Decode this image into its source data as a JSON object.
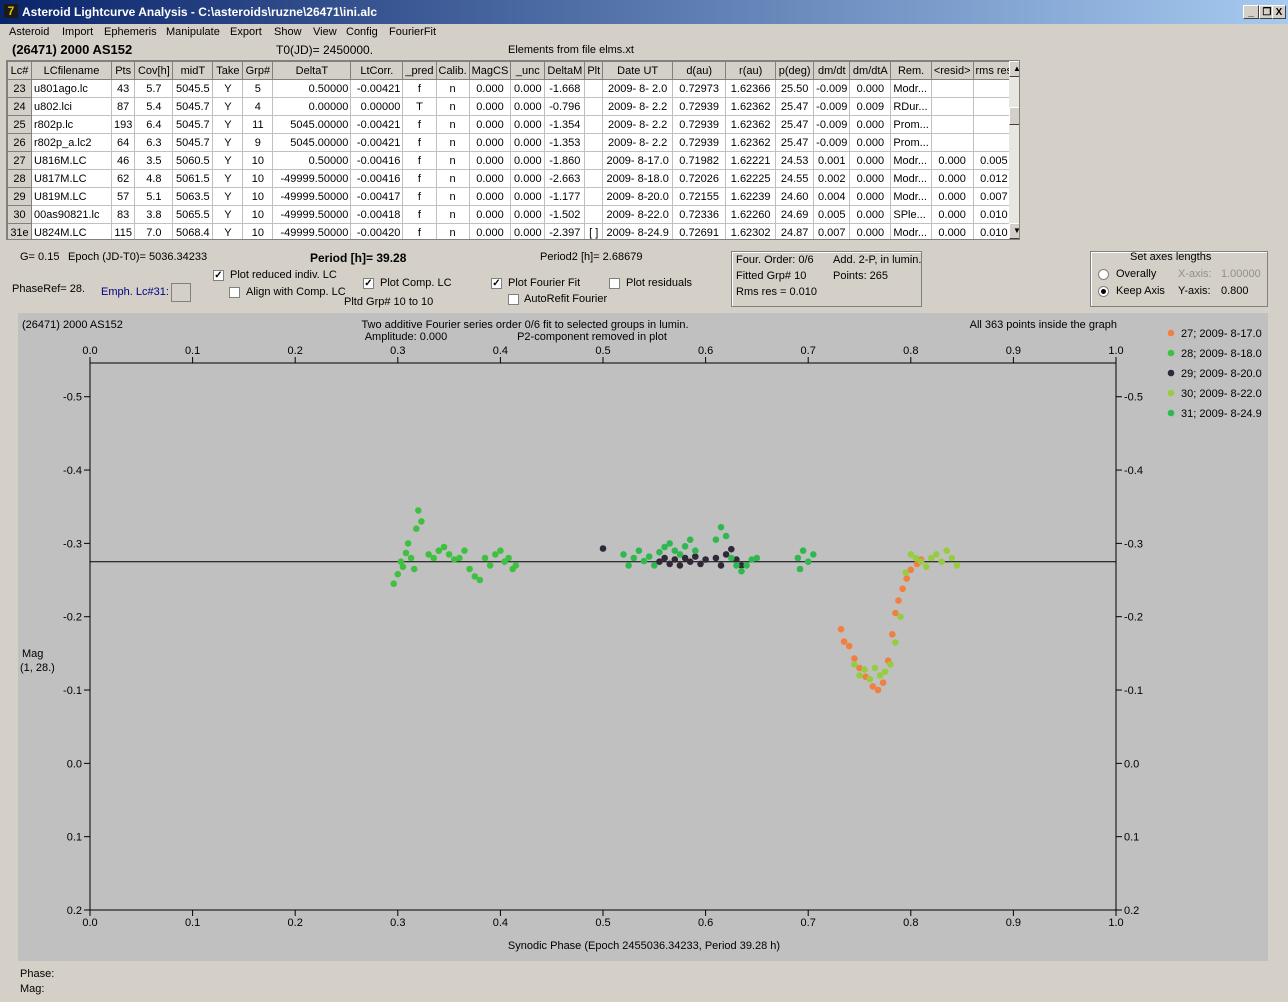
{
  "window": {
    "title": "Asteroid Lightcurve Analysis - C:\\asteroids\\ruzne\\26471\\ini.alc",
    "min_glyph": "_",
    "restore_glyph": "❐",
    "close_glyph": "X"
  },
  "menu": [
    "Asteroid",
    "Import",
    "Ephemeris",
    "Manipulate",
    "Export",
    "Show",
    "View",
    "Config",
    "FourierFit"
  ],
  "header": {
    "object": "(26471) 2000 AS152",
    "t0": "T0(JD)= 2450000.",
    "elements": "Elements from file elms.xt"
  },
  "table": {
    "columns": [
      "Lc#",
      "LCfilename",
      "Pts",
      "Cov[h]",
      "midT",
      "Take",
      "Grp#",
      "DeltaT",
      "LtCorr.",
      "_pred",
      "Calib.",
      "MagCS",
      "_unc",
      "DeltaM",
      "Plt",
      "Date UT",
      "d(au)",
      "r(au)",
      "p(deg)",
      "dm/dt",
      "dm/dtA",
      "Rem.",
      "<resid>",
      "rms res"
    ],
    "rows": [
      [
        "23",
        "u801ago.lc",
        "43",
        "5.7",
        "5045.5",
        "Y",
        "5",
        "0.50000",
        "-0.00421",
        "f",
        "n",
        "0.000",
        "0.000",
        "-1.668",
        "",
        "2009- 8- 2.0",
        "0.72973",
        "1.62366",
        "25.50",
        "-0.009",
        "0.000",
        "Modr...",
        "",
        ""
      ],
      [
        "24",
        "u802.lci",
        "87",
        "5.4",
        "5045.7",
        "Y",
        "4",
        "0.00000",
        "0.00000",
        "T",
        "n",
        "0.000",
        "0.000",
        "-0.796",
        "",
        "2009- 8- 2.2",
        "0.72939",
        "1.62362",
        "25.47",
        "-0.009",
        "0.009",
        "RDur...",
        "",
        ""
      ],
      [
        "25",
        "r802p.lc",
        "193",
        "6.4",
        "5045.7",
        "Y",
        "11",
        "5045.00000",
        "-0.00421",
        "f",
        "n",
        "0.000",
        "0.000",
        "-1.354",
        "",
        "2009- 8- 2.2",
        "0.72939",
        "1.62362",
        "25.47",
        "-0.009",
        "0.000",
        "Prom...",
        "",
        ""
      ],
      [
        "26",
        "r802p_a.lc2",
        "64",
        "6.3",
        "5045.7",
        "Y",
        "9",
        "5045.00000",
        "-0.00421",
        "f",
        "n",
        "0.000",
        "0.000",
        "-1.353",
        "",
        "2009- 8- 2.2",
        "0.72939",
        "1.62362",
        "25.47",
        "-0.009",
        "0.000",
        "Prom...",
        "",
        ""
      ],
      [
        "27",
        "U816M.LC",
        "46",
        "3.5",
        "5060.5",
        "Y",
        "10",
        "0.50000",
        "-0.00416",
        "f",
        "n",
        "0.000",
        "0.000",
        "-1.860",
        "",
        "2009- 8-17.0",
        "0.71982",
        "1.62221",
        "24.53",
        "0.001",
        "0.000",
        "Modr...",
        "0.000",
        "0.005"
      ],
      [
        "28",
        "U817M.LC",
        "62",
        "4.8",
        "5061.5",
        "Y",
        "10",
        "-49999.50000",
        "-0.00416",
        "f",
        "n",
        "0.000",
        "0.000",
        "-2.663",
        "",
        "2009- 8-18.0",
        "0.72026",
        "1.62225",
        "24.55",
        "0.002",
        "0.000",
        "Modr...",
        "0.000",
        "0.012"
      ],
      [
        "29",
        "U819M.LC",
        "57",
        "5.1",
        "5063.5",
        "Y",
        "10",
        "-49999.50000",
        "-0.00417",
        "f",
        "n",
        "0.000",
        "0.000",
        "-1.177",
        "",
        "2009- 8-20.0",
        "0.72155",
        "1.62239",
        "24.60",
        "0.004",
        "0.000",
        "Modr...",
        "0.000",
        "0.007"
      ],
      [
        "30",
        "00as90821.lc",
        "83",
        "3.8",
        "5065.5",
        "Y",
        "10",
        "-49999.50000",
        "-0.00418",
        "f",
        "n",
        "0.000",
        "0.000",
        "-1.502",
        "",
        "2009- 8-22.0",
        "0.72336",
        "1.62260",
        "24.69",
        "0.005",
        "0.000",
        "SPle...",
        "0.000",
        "0.010"
      ],
      [
        "31e",
        "U824M.LC",
        "115",
        "7.0",
        "5068.4",
        "Y",
        "10",
        "-49999.50000",
        "-0.00420",
        "f",
        "n",
        "0.000",
        "0.000",
        "-2.397",
        "[ ]",
        "2009- 8-24.9",
        "0.72691",
        "1.62302",
        "24.87",
        "0.007",
        "0.000",
        "Modr...",
        "0.000",
        "0.010"
      ]
    ],
    "scroll_up": "▲",
    "scroll_down": "▼"
  },
  "controls": {
    "g": "G= 0.15",
    "epoch": "Epoch (JD-T0)= 5036.34233",
    "period": "Period [h]= 39.28",
    "period2": "Period2 [h]= 2.68679",
    "phaseref": "PhaseRef= 28.",
    "emph": "Emph. Lc#31:",
    "plot_reduced": "Plot reduced indiv. LC",
    "align_comp": "Align with Comp. LC",
    "plot_comp": "Plot Comp. LC",
    "pltd_grp": "Pltd Grp#  10 to   10",
    "plot_fourier": "Plot Fourier Fit",
    "autorefit": "AutoRefit Fourier",
    "plot_residuals": "Plot residuals",
    "checked_glyph": "✓"
  },
  "fourier": {
    "order": "Four. Order:  0/6",
    "add": "Add. 2-P, in lumin.",
    "fitted": "Fitted Grp# 10",
    "points": "Points: 265",
    "rms": "Rms res     = 0.010"
  },
  "axes_box": {
    "title": "Set axes lengths",
    "overall": "Overally",
    "keep": "Keep Axis",
    "xaxis_label": "X-axis:",
    "xaxis_value": "1.00000",
    "yaxis_label": "Y-axis:",
    "yaxis_value": "0.800"
  },
  "chart_data": {
    "type": "scatter",
    "object_label": "(26471) 2000 AS152",
    "title": "Two additive Fourier series order 0/6 fit to selected groups in lumin.",
    "amplitude": "Amplitude: 0.000",
    "p2note": "P2-component removed in plot",
    "points_note": "All 363 points inside the graph",
    "xlabel": "Synodic Phase (Epoch 2455036.34233, Period 39.28 h)",
    "ylabel": "Mag",
    "ylabel2": "(1, 28.)",
    "xlim": [
      0.0,
      1.0
    ],
    "ylim": [
      -0.4,
      0.4
    ],
    "y_reversed": true,
    "xticks": [
      "0.0",
      "0.1",
      "0.2",
      "0.3",
      "0.4",
      "0.5",
      "0.6",
      "0.7",
      "0.8",
      "0.9",
      "1.0"
    ],
    "yticks": [
      "-0.5",
      "-0.4",
      "-0.3",
      "-0.2",
      "-0.1",
      "0.0",
      "0.1",
      "0.2"
    ],
    "ytick_values": [
      -0.5,
      -0.4,
      -0.3,
      -0.2,
      -0.1,
      0.0,
      0.1,
      0.2
    ],
    "fit_line_y": -0.275,
    "series": [
      {
        "name": "27; 2009- 8-17.0",
        "color": "#f08040",
        "points": [
          [
            0.732,
            -0.183
          ],
          [
            0.735,
            -0.166
          ],
          [
            0.74,
            -0.16
          ],
          [
            0.745,
            -0.143
          ],
          [
            0.75,
            -0.13
          ],
          [
            0.756,
            -0.118
          ],
          [
            0.763,
            -0.105
          ],
          [
            0.768,
            -0.1
          ],
          [
            0.773,
            -0.11
          ],
          [
            0.778,
            -0.14
          ],
          [
            0.782,
            -0.176
          ],
          [
            0.785,
            -0.205
          ],
          [
            0.788,
            -0.222
          ],
          [
            0.792,
            -0.238
          ],
          [
            0.796,
            -0.252
          ],
          [
            0.8,
            -0.264
          ],
          [
            0.806,
            -0.272
          ],
          [
            0.81,
            -0.278
          ]
        ]
      },
      {
        "name": "28; 2009- 8-18.0",
        "color": "#40c040",
        "points": [
          [
            0.3,
            -0.258
          ],
          [
            0.303,
            -0.275
          ],
          [
            0.305,
            -0.268
          ],
          [
            0.308,
            -0.287
          ],
          [
            0.31,
            -0.3
          ],
          [
            0.313,
            -0.28
          ],
          [
            0.316,
            -0.265
          ],
          [
            0.318,
            -0.32
          ],
          [
            0.32,
            -0.345
          ],
          [
            0.323,
            -0.33
          ],
          [
            0.33,
            -0.285
          ],
          [
            0.335,
            -0.28
          ],
          [
            0.34,
            -0.29
          ],
          [
            0.345,
            -0.295
          ],
          [
            0.35,
            -0.285
          ],
          [
            0.355,
            -0.278
          ],
          [
            0.36,
            -0.28
          ],
          [
            0.365,
            -0.29
          ],
          [
            0.37,
            -0.265
          ],
          [
            0.375,
            -0.255
          ],
          [
            0.38,
            -0.25
          ],
          [
            0.385,
            -0.28
          ],
          [
            0.39,
            -0.27
          ],
          [
            0.395,
            -0.285
          ],
          [
            0.4,
            -0.29
          ],
          [
            0.404,
            -0.275
          ],
          [
            0.408,
            -0.28
          ],
          [
            0.412,
            -0.265
          ],
          [
            0.415,
            -0.27
          ],
          [
            0.296,
            -0.245
          ]
        ]
      },
      {
        "name": "29; 2009- 8-20.0",
        "color": "#302838",
        "points": [
          [
            0.5,
            -0.293
          ],
          [
            0.555,
            -0.275
          ],
          [
            0.56,
            -0.28
          ],
          [
            0.565,
            -0.272
          ],
          [
            0.57,
            -0.278
          ],
          [
            0.575,
            -0.27
          ],
          [
            0.58,
            -0.28
          ],
          [
            0.585,
            -0.275
          ],
          [
            0.59,
            -0.282
          ],
          [
            0.595,
            -0.272
          ],
          [
            0.6,
            -0.278
          ],
          [
            0.61,
            -0.28
          ],
          [
            0.615,
            -0.27
          ],
          [
            0.62,
            -0.285
          ],
          [
            0.625,
            -0.292
          ],
          [
            0.63,
            -0.278
          ],
          [
            0.635,
            -0.27
          ]
        ]
      },
      {
        "name": "30; 2009- 8-22.0",
        "color": "#98cc40",
        "points": [
          [
            0.745,
            -0.135
          ],
          [
            0.75,
            -0.12
          ],
          [
            0.755,
            -0.128
          ],
          [
            0.76,
            -0.115
          ],
          [
            0.765,
            -0.13
          ],
          [
            0.77,
            -0.12
          ],
          [
            0.775,
            -0.125
          ],
          [
            0.78,
            -0.135
          ],
          [
            0.785,
            -0.165
          ],
          [
            0.79,
            -0.2
          ],
          [
            0.795,
            -0.26
          ],
          [
            0.8,
            -0.285
          ],
          [
            0.805,
            -0.28
          ],
          [
            0.81,
            -0.275
          ],
          [
            0.815,
            -0.268
          ],
          [
            0.82,
            -0.28
          ],
          [
            0.825,
            -0.285
          ],
          [
            0.83,
            -0.275
          ],
          [
            0.835,
            -0.29
          ],
          [
            0.84,
            -0.28
          ],
          [
            0.845,
            -0.27
          ]
        ]
      },
      {
        "name": "31; 2009- 8-24.9",
        "color": "#30b850",
        "points": [
          [
            0.52,
            -0.285
          ],
          [
            0.525,
            -0.27
          ],
          [
            0.53,
            -0.28
          ],
          [
            0.535,
            -0.29
          ],
          [
            0.54,
            -0.276
          ],
          [
            0.545,
            -0.282
          ],
          [
            0.55,
            -0.27
          ],
          [
            0.555,
            -0.288
          ],
          [
            0.56,
            -0.295
          ],
          [
            0.565,
            -0.3
          ],
          [
            0.57,
            -0.29
          ],
          [
            0.575,
            -0.285
          ],
          [
            0.58,
            -0.296
          ],
          [
            0.585,
            -0.305
          ],
          [
            0.59,
            -0.29
          ],
          [
            0.61,
            -0.305
          ],
          [
            0.615,
            -0.322
          ],
          [
            0.62,
            -0.31
          ],
          [
            0.625,
            -0.28
          ],
          [
            0.63,
            -0.27
          ],
          [
            0.635,
            -0.262
          ],
          [
            0.64,
            -0.27
          ],
          [
            0.645,
            -0.278
          ],
          [
            0.65,
            -0.28
          ],
          [
            0.69,
            -0.28
          ],
          [
            0.695,
            -0.29
          ],
          [
            0.7,
            -0.275
          ],
          [
            0.705,
            -0.285
          ],
          [
            0.692,
            -0.265
          ]
        ]
      }
    ]
  },
  "status": {
    "phase": "Phase:",
    "mag": "Mag:"
  }
}
